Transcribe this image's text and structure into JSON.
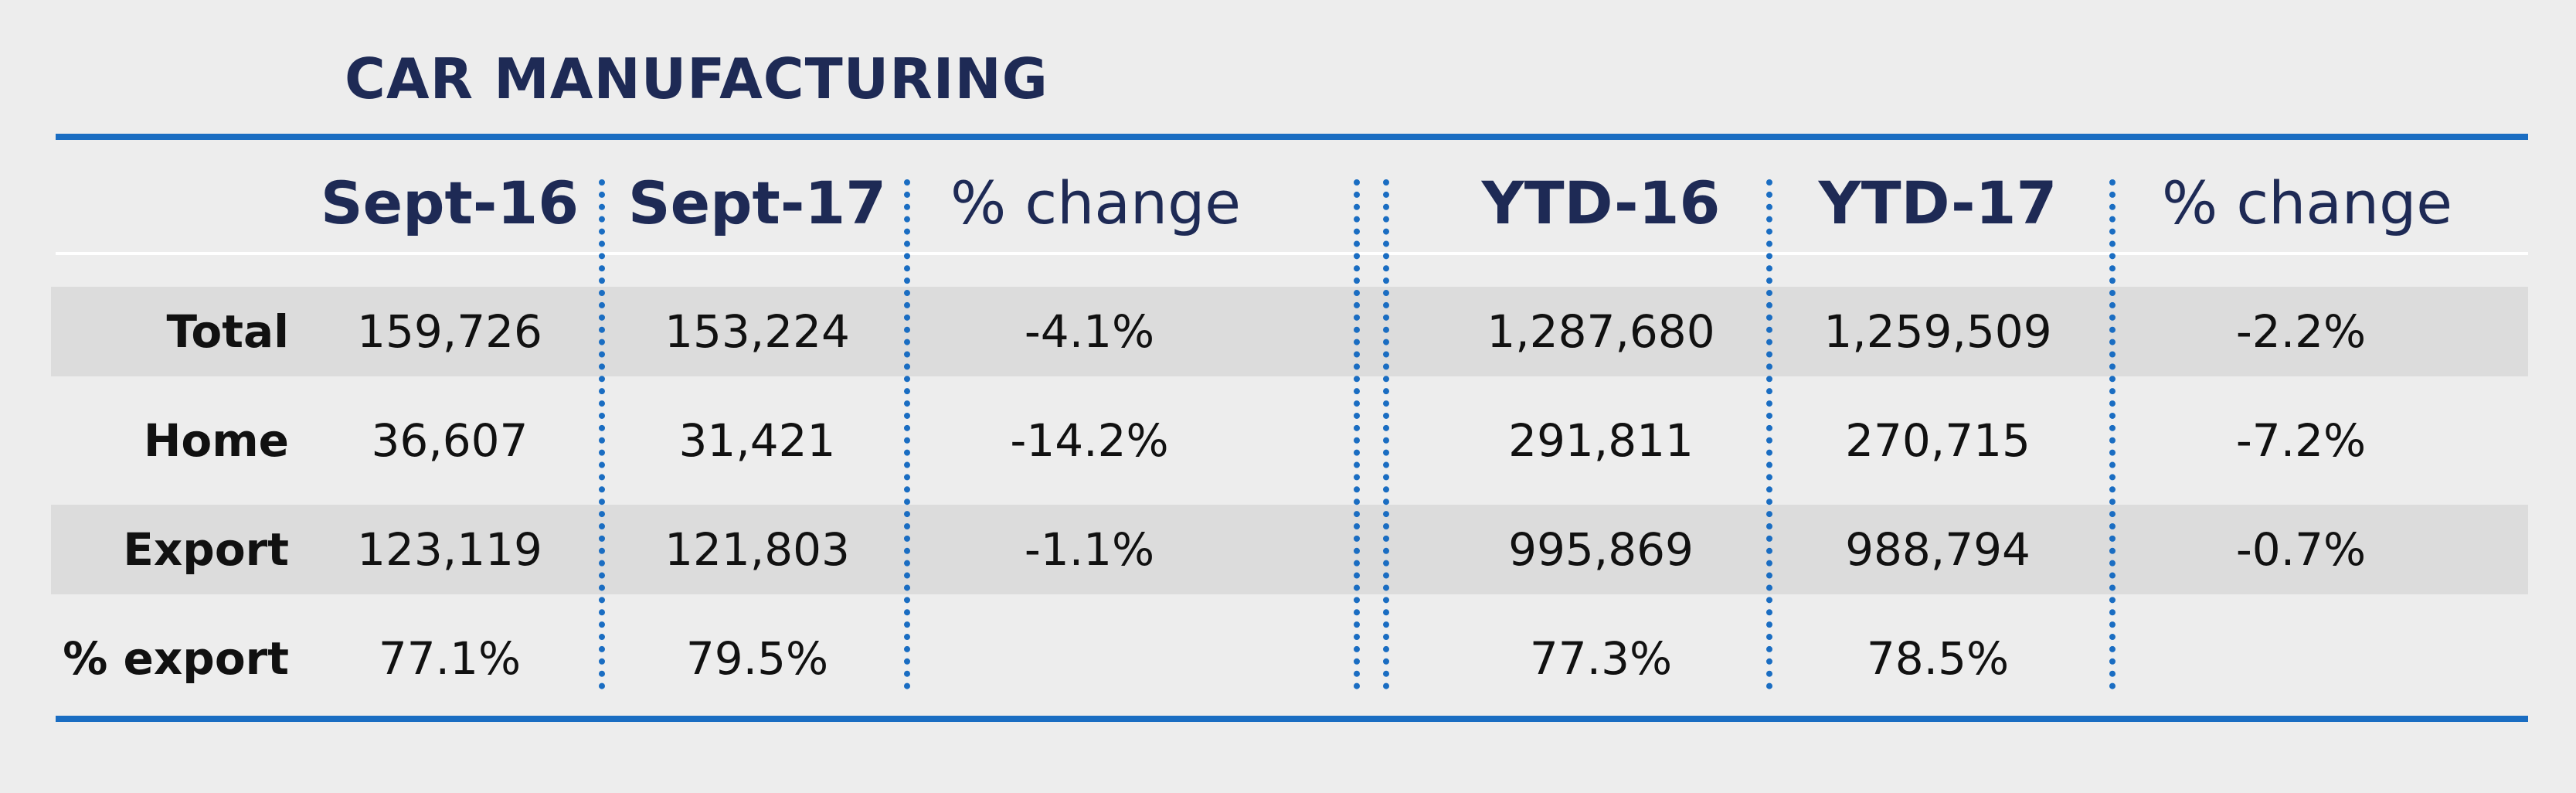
{
  "chart_data": {
    "type": "table",
    "title": "CAR MANUFACTURING",
    "columns": [
      "Sept-16",
      "Sept-17",
      "% change",
      "YTD-16",
      "YTD-17",
      "% change"
    ],
    "rows": [
      {
        "label": "Total",
        "values": [
          "159,726",
          "153,224",
          "-4.1%",
          "1,287,680",
          "1,259,509",
          "-2.2%"
        ]
      },
      {
        "label": "Home",
        "values": [
          "36,607",
          "31,421",
          "-14.2%",
          "291,811",
          "270,715",
          "-7.2%"
        ]
      },
      {
        "label": "Export",
        "values": [
          "123,119",
          "121,803",
          "-1.1%",
          "995,869",
          "988,794",
          "-0.7%"
        ]
      },
      {
        "label": "% export",
        "values": [
          "77.1%",
          "79.5%",
          "",
          "77.3%",
          "78.5%",
          ""
        ]
      }
    ]
  },
  "colors": {
    "title": "#1e2a55",
    "rule": "#1a6dc2",
    "band": "#dcdcdc",
    "background": "#ededed"
  }
}
